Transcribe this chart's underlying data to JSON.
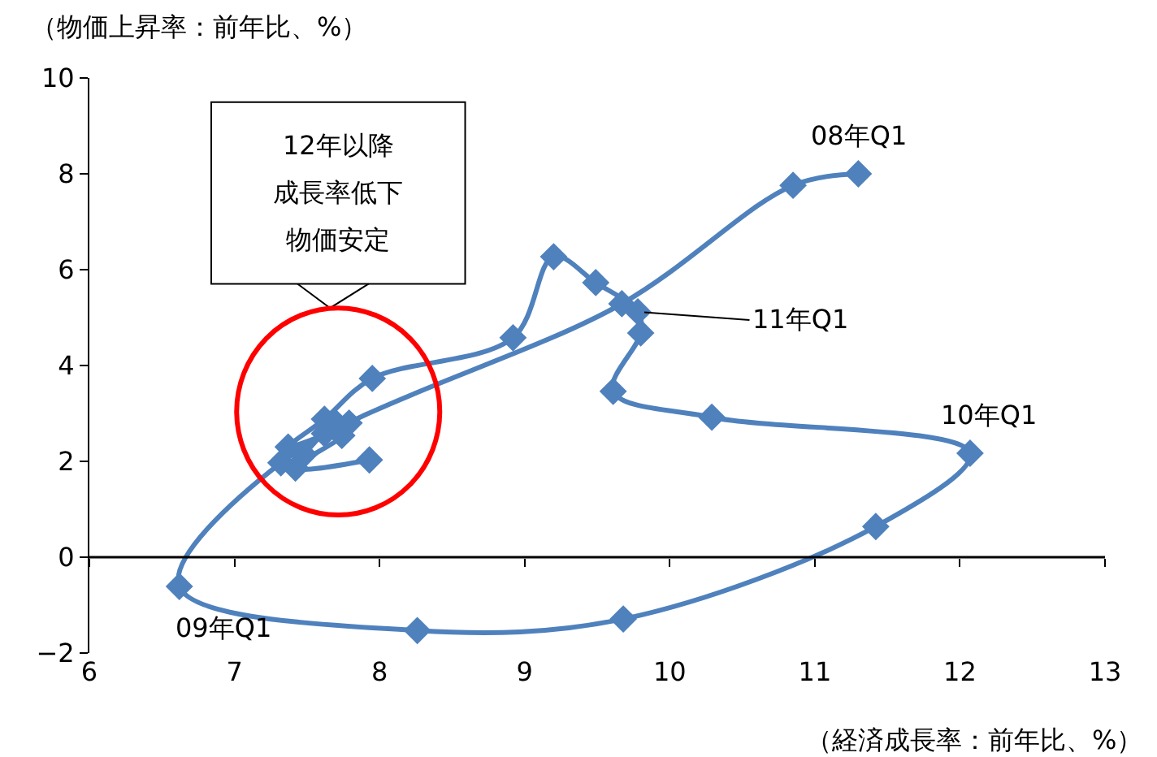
{
  "chart_data": {
    "type": "line",
    "ylabel": "（物価上昇率：前年比、%）",
    "xlabel": "（経済成長率：前年比、%）",
    "xlim": [
      6,
      13
    ],
    "xticks": [
      6,
      7,
      8,
      9,
      10,
      11,
      12,
      13
    ],
    "ylim": [
      -2,
      10
    ],
    "yticks": [
      -2,
      0,
      2,
      4,
      6,
      8,
      10
    ],
    "ref_lines": [
      {
        "axis": "y",
        "value": 0,
        "color": "#000000"
      }
    ],
    "legend": false,
    "marker": "diamond",
    "line_style": "solid",
    "series": [
      {
        "color": "#4f81bd",
        "x": [
          11.3,
          10.85,
          9.67,
          7.32,
          6.62,
          8.26,
          9.68,
          11.42,
          12.07,
          10.29,
          9.61,
          9.8,
          9.78,
          9.49,
          9.2,
          8.92,
          7.95,
          7.62,
          7.37,
          7.79,
          7.7,
          7.48,
          7.62,
          7.74,
          7.42,
          7.93
        ],
        "values": [
          8.0,
          7.76,
          5.29,
          1.97,
          -0.61,
          -1.53,
          -1.29,
          0.64,
          2.17,
          2.92,
          3.46,
          4.68,
          5.12,
          5.73,
          6.27,
          4.58,
          3.73,
          2.88,
          2.3,
          2.8,
          2.8,
          2.14,
          2.58,
          2.54,
          1.86,
          2.03
        ]
      }
    ],
    "annotations": [
      {
        "text": "08年Q1",
        "x": 11.3,
        "y": 8.0
      },
      {
        "text": "09年Q1",
        "x": 6.62,
        "y": -0.61
      },
      {
        "text": "10年Q1",
        "x": 12.07,
        "y": 2.17
      },
      {
        "text": "11年Q1",
        "x": 9.78,
        "y": 5.12
      },
      "12年以降",
      "成長率低下",
      "物価安定"
    ]
  }
}
